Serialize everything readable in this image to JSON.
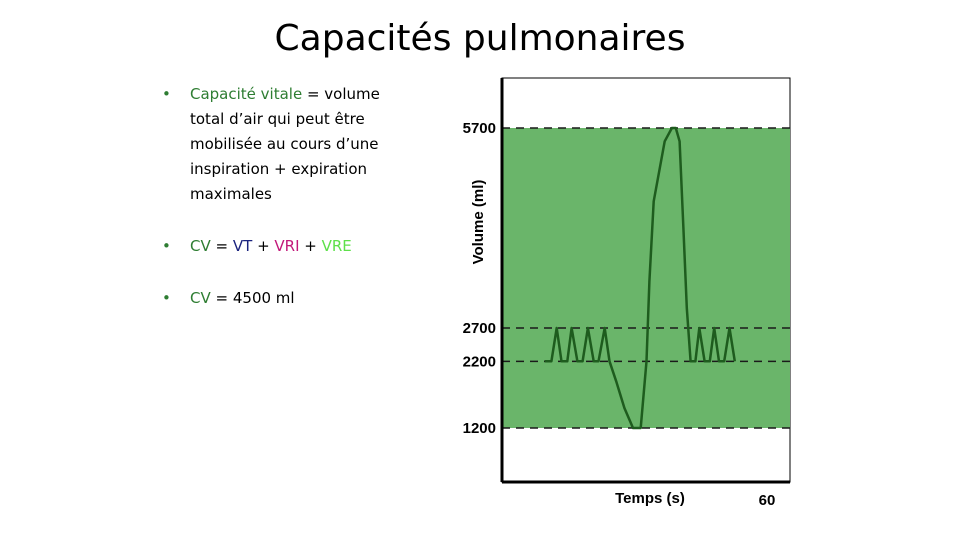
{
  "slide": {
    "title": "Capacités pulmonaires",
    "bullets": [
      {
        "term": "Capacité vitale",
        "text": " = volume total d’air qui peut être mobilisée au cours d’une inspiration + expiration maximales"
      },
      {
        "cv": "CV",
        "eq": " = ",
        "vt": "VT",
        "p1": " + ",
        "vri": "VRI",
        "p2": " + ",
        "vre": "VRE"
      },
      {
        "cv": "CV",
        "text": " = 4500 ml"
      }
    ]
  },
  "colors": {
    "band": "#6ab56a",
    "trace": "#1e5c1e",
    "bullet_green": "#2e7d32",
    "vt_blue": "#1a237e",
    "vri_magenta": "#c2187a",
    "vre_lime": "#5ee04a"
  },
  "chart_data": {
    "type": "line",
    "xlabel": "Temps (s)",
    "ylabel": "Volume  (ml)",
    "x_tick_labels": [
      "60"
    ],
    "y_ticks": [
      1200,
      2200,
      2700,
      5700
    ],
    "y_tick_labels": [
      "1200",
      "2200",
      "2700",
      "5700"
    ],
    "xlim": [
      0,
      60
    ],
    "dashed_levels": [
      1200,
      2200,
      2700,
      5700
    ],
    "shaded_band": {
      "from": 1200,
      "to": 5700
    },
    "series": [
      {
        "x": [
          8.9,
          10.3,
          11.4,
          12.4,
          13.6,
          14.5,
          15.7,
          16.8,
          17.9,
          19.1,
          20.1,
          21.4,
          22.4,
          23.8,
          25.5,
          27.3,
          28.9,
          30.1,
          30.7,
          31.6,
          33.9,
          35.4,
          36.2,
          37.0,
          37.8,
          38.5,
          39.3,
          40.3,
          41.1,
          42.2,
          43.3,
          44.2,
          45.2,
          46.3,
          47.4,
          48.5
        ],
        "y": [
          2200,
          2200,
          2700,
          2200,
          2200,
          2700,
          2200,
          2200,
          2700,
          2200,
          2200,
          2700,
          2200,
          1900,
          1500,
          1200,
          1200,
          2200,
          3400,
          4600,
          5500,
          5700,
          5700,
          5500,
          4200,
          3000,
          2200,
          2200,
          2700,
          2200,
          2200,
          2700,
          2200,
          2200,
          2700,
          2200
        ]
      }
    ]
  }
}
